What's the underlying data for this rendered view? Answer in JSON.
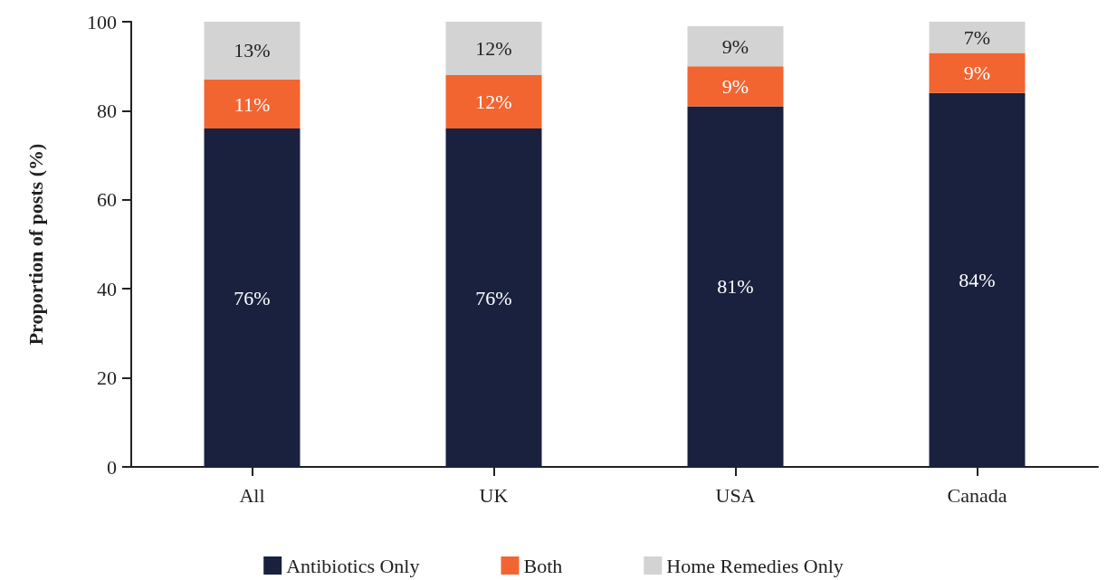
{
  "chart_data": {
    "type": "bar",
    "stacked": true,
    "ylabel": "Proportion of posts (%)",
    "categories": [
      "All",
      "UK",
      "USA",
      "Canada"
    ],
    "series": [
      {
        "name": "Antibiotics Only",
        "color": "#19213f",
        "values": [
          76,
          76,
          81,
          84
        ],
        "value_labels": [
          "76%",
          "76%",
          "81%",
          "84%"
        ]
      },
      {
        "name": "Both",
        "color": "#f26531",
        "values": [
          11,
          12,
          9,
          9
        ],
        "value_labels": [
          "11%",
          "12%",
          "9%",
          "9%"
        ]
      },
      {
        "name": "Home Remedies Only",
        "color": "#d3d3d3",
        "values": [
          13,
          12,
          9,
          7
        ],
        "value_labels": [
          "13%",
          "12%",
          "9%",
          "7%"
        ]
      }
    ],
    "ylim": [
      0,
      100
    ],
    "yticks": [
      0,
      20,
      40,
      60,
      80,
      100
    ],
    "grid": false,
    "legend": "bottom"
  }
}
